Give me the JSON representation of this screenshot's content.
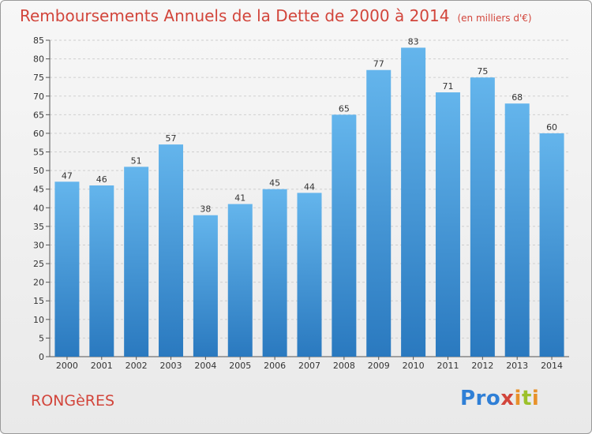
{
  "header": {
    "title": "Remboursements Annuels de la Dette de 2000 à 2014",
    "unit": "(en milliers d'€)"
  },
  "footer": {
    "commune": "RONGèRES",
    "logo": "Proxiti"
  },
  "colors": {
    "bar_light": "#64b5ec",
    "bar_dark": "#2a79bf",
    "title": "#d2453b",
    "grid": "#cfcfcf"
  },
  "chart_data": {
    "type": "bar",
    "title": "Remboursements Annuels de la Dette de 2000 à 2014",
    "xlabel": "",
    "ylabel": "",
    "categories": [
      "2000",
      "2001",
      "2002",
      "2003",
      "2004",
      "2005",
      "2006",
      "2007",
      "2008",
      "2009",
      "2010",
      "2011",
      "2012",
      "2013",
      "2014"
    ],
    "values": [
      47,
      46,
      51,
      57,
      38,
      41,
      45,
      44,
      65,
      77,
      83,
      71,
      75,
      68,
      60
    ],
    "ylim": [
      0,
      85
    ],
    "yticks": [
      0,
      5,
      10,
      15,
      20,
      25,
      30,
      35,
      40,
      45,
      50,
      55,
      60,
      65,
      70,
      75,
      80,
      85
    ],
    "grid": true,
    "data_labels": true
  }
}
